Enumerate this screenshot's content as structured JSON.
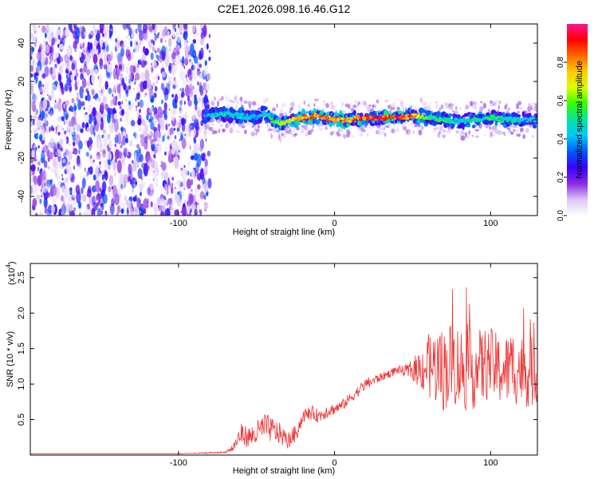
{
  "chart_data": [
    {
      "type": "heatmap",
      "title": "C2E1.2026.098.16.46.G12",
      "xlabel": "Height of straight line (km)",
      "ylabel": "Frequency (Hz)",
      "xlim": [
        -195,
        130
      ],
      "ylim": [
        -50,
        50
      ],
      "xticks": [
        -100,
        0,
        100
      ],
      "xtick_labels": [
        "-100",
        "0",
        "100"
      ],
      "yticks": [
        -40,
        -20,
        0,
        20,
        40
      ],
      "ytick_labels": [
        "-40",
        "-20",
        "0",
        "20",
        "40"
      ],
      "noise_region_x": [
        -195,
        -80
      ],
      "signal_band": {
        "x": [
          -83,
          -70,
          -60,
          -50,
          -45,
          -40,
          -35,
          -30,
          -20,
          -10,
          0,
          10,
          20,
          40,
          50,
          60,
          70,
          80,
          90,
          100,
          110,
          120,
          130
        ],
        "center_hz": [
          2,
          3,
          2,
          1,
          4,
          0,
          -2,
          -1,
          1,
          2,
          0,
          0,
          1,
          1,
          2,
          1,
          0,
          -1,
          0,
          1,
          0,
          0,
          0
        ],
        "peak_amplitude": [
          0.45,
          0.55,
          0.5,
          0.45,
          0.5,
          0.6,
          0.65,
          0.75,
          0.9,
          0.92,
          0.85,
          0.88,
          0.95,
          0.97,
          0.9,
          0.6,
          0.55,
          0.5,
          0.55,
          0.6,
          0.55,
          0.5,
          0.5
        ]
      },
      "colorbar": {
        "label": "Normalized spectral amplitude",
        "range": [
          0,
          1
        ],
        "ticks": [
          0.0,
          0.2,
          0.4,
          0.6,
          0.8
        ],
        "tick_labels": [
          "0.0",
          "0.2",
          "0.4",
          "0.6",
          "0.8"
        ],
        "colors": [
          "#ffffff",
          "#dcc6f7",
          "#8a2be2",
          "#3a00ff",
          "#0059ff",
          "#00c8ff",
          "#00e5a0",
          "#33ff00",
          "#d9ff00",
          "#ffcc00",
          "#ff6a00",
          "#ff0000",
          "#ff1493"
        ]
      }
    },
    {
      "type": "line",
      "xlabel": "Height of straight line (km)",
      "ylabel": "SNR (10 * v/v)",
      "y_multiplier": "(x10",
      "y_multiplier_exp": "4",
      "y_multiplier_close": ")",
      "xlim": [
        -195,
        130
      ],
      "ylim": [
        0,
        2.7
      ],
      "xticks": [
        -100,
        0,
        100
      ],
      "xtick_labels": [
        "-100",
        "0",
        "100"
      ],
      "yticks": [
        0.5,
        1.0,
        1.5,
        2.0,
        2.5
      ],
      "ytick_labels": [
        "0.5",
        "1.0",
        "1.5",
        "2.0",
        "2.5"
      ],
      "color": "#ee3333",
      "series": [
        {
          "name": "SNR",
          "x": [
            -195,
            -150,
            -100,
            -80,
            -70,
            -65,
            -60,
            -55,
            -50,
            -45,
            -40,
            -35,
            -30,
            -25,
            -20,
            -15,
            -10,
            -5,
            0,
            5,
            10,
            15,
            20,
            25,
            30,
            35,
            40,
            45,
            50,
            55,
            60,
            65,
            70,
            75,
            80,
            85,
            90,
            95,
            100,
            105,
            110,
            115,
            120,
            125,
            130
          ],
          "y": [
            0.02,
            0.02,
            0.02,
            0.03,
            0.04,
            0.1,
            0.3,
            0.25,
            0.3,
            0.4,
            0.35,
            0.3,
            0.2,
            0.3,
            0.55,
            0.6,
            0.55,
            0.62,
            0.65,
            0.7,
            0.8,
            0.9,
            1.0,
            1.05,
            1.1,
            1.15,
            1.2,
            1.18,
            1.2,
            1.22,
            1.25,
            1.25,
            1.2,
            1.3,
            1.25,
            1.2,
            1.2,
            1.25,
            1.3,
            1.2,
            1.2,
            1.25,
            1.2,
            1.15,
            1.2
          ],
          "amplitude": [
            0.0,
            0.0,
            0.0,
            0.01,
            0.01,
            0.06,
            0.15,
            0.15,
            0.18,
            0.2,
            0.18,
            0.15,
            0.12,
            0.12,
            0.1,
            0.1,
            0.1,
            0.1,
            0.08,
            0.08,
            0.08,
            0.08,
            0.08,
            0.08,
            0.06,
            0.06,
            0.06,
            0.08,
            0.15,
            0.3,
            0.45,
            0.55,
            0.6,
            0.6,
            0.6,
            0.6,
            0.55,
            0.55,
            0.5,
            0.5,
            0.5,
            0.55,
            0.5,
            0.5,
            0.5
          ]
        }
      ]
    }
  ]
}
